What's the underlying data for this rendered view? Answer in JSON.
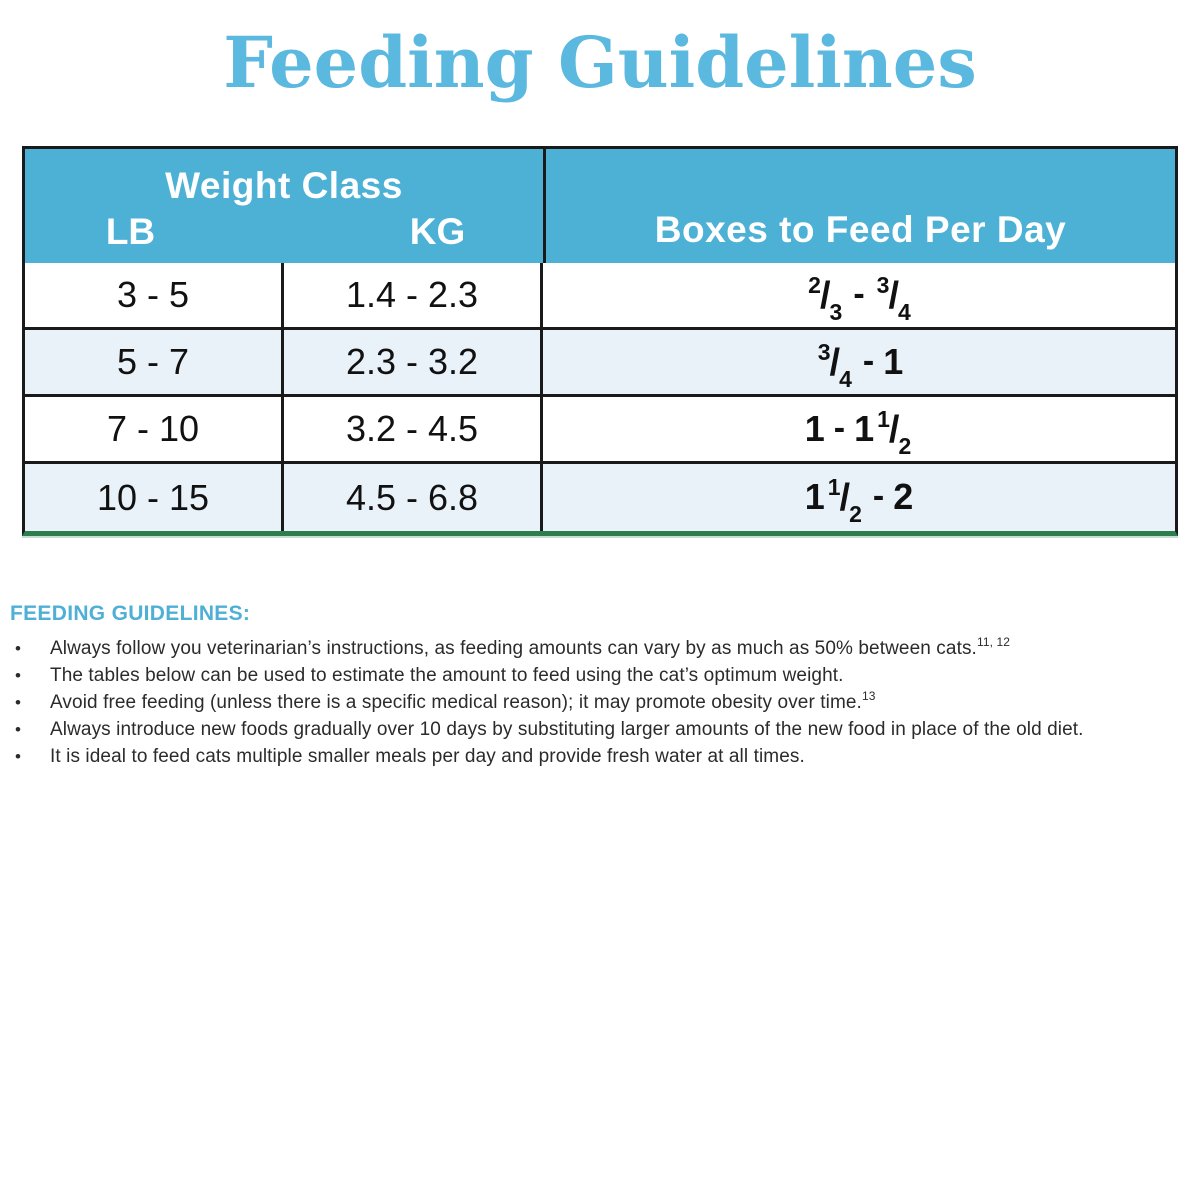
{
  "page": {
    "title": "Feeding Guidelines"
  },
  "colors": {
    "title_blue": "#5bb8de",
    "header_blue": "#4db1d6",
    "alt_row_blue": "#eaf2f9",
    "table_border_black": "#1a1a1a",
    "table_underline_green": "#2e7d4f",
    "guidelines_heading_blue": "#4fafd5",
    "body_text": "#2b2b2b"
  },
  "table": {
    "header": {
      "weight_class": "Weight Class",
      "lb": "LB",
      "kg": "KG",
      "boxes": "Boxes to Feed Per Day"
    },
    "rows": [
      {
        "lb": "3 - 5",
        "kg": "1.4 - 2.3",
        "boxes_text": "2/3 - 3/4",
        "boxes_parts": [
          "2",
          "/",
          "3",
          "-",
          "3",
          "/",
          "4"
        ]
      },
      {
        "lb": "5 - 7",
        "kg": "2.3 - 3.2",
        "boxes_text": "3/4 - 1",
        "boxes_parts": [
          "3",
          "/",
          "4",
          "-",
          "1"
        ]
      },
      {
        "lb": "7 - 10",
        "kg": "3.2 - 4.5",
        "boxes_text": "1 - 1 1/2",
        "boxes_parts": [
          "1",
          "-",
          "1",
          "1",
          "/",
          "2"
        ]
      },
      {
        "lb": "10 - 15",
        "kg": "4.5 - 6.8",
        "boxes_text": "1 1/2 - 2",
        "boxes_parts": [
          "1",
          "1",
          "/",
          "2",
          "-",
          "2"
        ]
      }
    ]
  },
  "guidelines": {
    "heading": "FEEDING GUIDELINES:",
    "bullet_char": "•",
    "bullets": [
      {
        "text": "Always follow you veterinarian’s instructions, as feeding amounts can vary by as much as 50% between cats.",
        "sup": "11, 12"
      },
      {
        "text": "The tables below can be used to estimate the amount to feed using the cat’s optimum weight.",
        "sup": ""
      },
      {
        "text": "Avoid free feeding (unless there is a specific medical reason); it may promote obesity over time.",
        "sup": "13"
      },
      {
        "text": "Always introduce new foods gradually over 10 days by substituting larger amounts of the new food in place of the old diet.",
        "sup": ""
      },
      {
        "text": "It is ideal to feed cats multiple smaller meals per day and provide fresh water at all times.",
        "sup": ""
      }
    ]
  }
}
